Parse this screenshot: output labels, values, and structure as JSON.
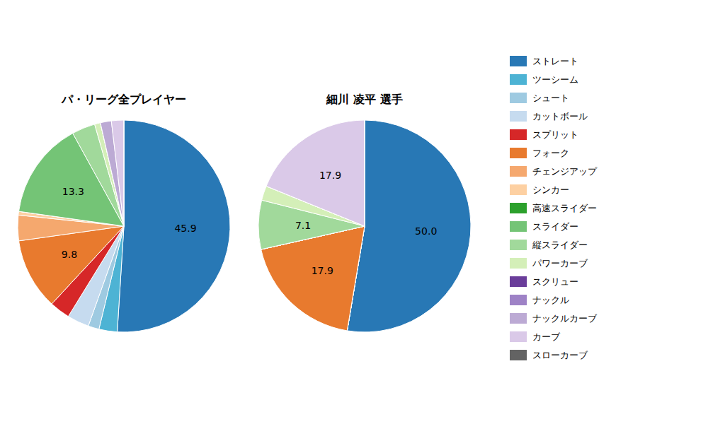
{
  "chart_data": {
    "type": "pie",
    "categories": [
      "ストレート",
      "ツーシーム",
      "シュート",
      "カットボール",
      "スプリット",
      "フォーク",
      "チェンジアップ",
      "シンカー",
      "高速スライダー",
      "スライダー",
      "縦スライダー",
      "パワーカーブ",
      "スクリュー",
      "ナックル",
      "ナックルカーブ",
      "カーブ",
      "スローカーブ"
    ],
    "colors": [
      "#2878b5",
      "#4db3d4",
      "#9ecae1",
      "#c6dbef",
      "#d62728",
      "#e87a2e",
      "#f5a86e",
      "#fdd0a2",
      "#2ca02c",
      "#74c476",
      "#a1d99b",
      "#d4efb8",
      "#6a3d9a",
      "#9e82c6",
      "#bcaad4",
      "#dac9e8",
      "#636363"
    ],
    "series": [
      {
        "name": "パ・リーグ全プレイヤー",
        "values": [
          45.9,
          2.5,
          1.5,
          3.0,
          2.8,
          9.8,
          3.5,
          0.5,
          0.0,
          13.3,
          3.2,
          0.8,
          0.0,
          0.0,
          1.5,
          1.7,
          0.0
        ],
        "value_labels": [
          "45.9",
          null,
          null,
          null,
          null,
          "9.8",
          null,
          null,
          null,
          "13.3",
          null,
          null,
          null,
          null,
          null,
          null,
          null
        ]
      },
      {
        "name": "細川 凌平 選手",
        "values": [
          50.0,
          0.0,
          0.0,
          0.0,
          0.0,
          17.9,
          0.0,
          0.0,
          0.0,
          0.0,
          7.1,
          2.1,
          0.0,
          0.0,
          0.0,
          17.9,
          0.0
        ],
        "value_labels": [
          "50.0",
          null,
          null,
          null,
          null,
          "17.9",
          null,
          null,
          null,
          null,
          "7.1",
          null,
          null,
          null,
          null,
          "17.9",
          null
        ]
      }
    ],
    "data_labels": true,
    "legend": "right"
  }
}
